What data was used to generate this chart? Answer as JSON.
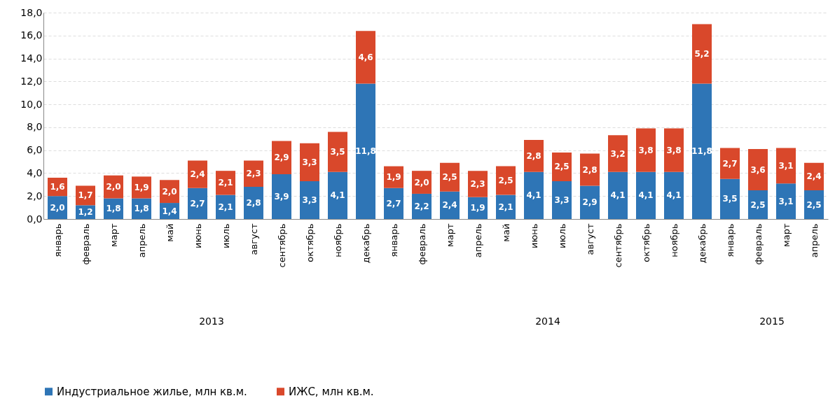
{
  "chart_data": {
    "type": "bar",
    "stacked": true,
    "categories": [
      "январь",
      "февраль",
      "март",
      "апрель",
      "май",
      "июнь",
      "июль",
      "август",
      "сентябрь",
      "октябрь",
      "ноябрь",
      "декабрь",
      "январь",
      "февраль",
      "март",
      "апрель",
      "май",
      "июнь",
      "июль",
      "август",
      "сентябрь",
      "октябрь",
      "ноябрь",
      "декабрь",
      "январь",
      "февраль",
      "март",
      "апрель"
    ],
    "series": [
      {
        "name": "Индустриальное жилье, млн кв.м.",
        "color": "#2e75b6",
        "values": [
          2.0,
          1.2,
          1.8,
          1.8,
          1.4,
          2.7,
          2.1,
          2.8,
          3.9,
          3.3,
          4.1,
          11.8,
          2.7,
          2.2,
          2.4,
          1.9,
          2.1,
          4.1,
          3.3,
          2.9,
          4.1,
          4.1,
          4.1,
          11.8,
          3.5,
          2.5,
          3.1,
          2.5
        ],
        "value_labels": [
          "2,0",
          "1,2",
          "1,8",
          "1,8",
          "1,4",
          "2,7",
          "2,1",
          "2,8",
          "3,9",
          "3,3",
          "4,1",
          "11,8",
          "2,7",
          "2,2",
          "2,4",
          "1,9",
          "2,1",
          "4,1",
          "3,3",
          "2,9",
          "4,1",
          "4,1",
          "4,1",
          "11,8",
          "3,5",
          "2,5",
          "3,1",
          "2,5"
        ]
      },
      {
        "name": "ИЖС, млн кв.м.",
        "color": "#d9482b",
        "values": [
          1.6,
          1.7,
          2.0,
          1.9,
          2.0,
          2.4,
          2.1,
          2.3,
          2.9,
          3.3,
          3.5,
          4.6,
          1.9,
          2.0,
          2.5,
          2.3,
          2.5,
          2.8,
          2.5,
          2.8,
          3.2,
          3.8,
          3.8,
          5.2,
          2.7,
          3.6,
          3.1,
          2.4
        ],
        "value_labels": [
          "1,6",
          "1,7",
          "2,0",
          "1,9",
          "2,0",
          "2,4",
          "2,1",
          "2,3",
          "2,9",
          "3,3",
          "3,5",
          "4,6",
          "1,9",
          "2,0",
          "2,5",
          "2,3",
          "2,5",
          "2,8",
          "2,5",
          "2,8",
          "3,2",
          "3,8",
          "3,8",
          "5,2",
          "2,7",
          "3,6",
          "3,1",
          "2,4"
        ]
      }
    ],
    "annotations": [
      "2013",
      "2014",
      "2015"
    ],
    "ylim": [
      0,
      18
    ],
    "yticks": [
      {
        "value": 0,
        "label": "0,0"
      },
      {
        "value": 2,
        "label": "2,0"
      },
      {
        "value": 4,
        "label": "4,0"
      },
      {
        "value": 6,
        "label": "6,0"
      },
      {
        "value": 8,
        "label": "8,0"
      },
      {
        "value": 10,
        "label": "10,0"
      },
      {
        "value": 12,
        "label": "12,0"
      },
      {
        "value": 14,
        "label": "14,0"
      },
      {
        "value": 16,
        "label": "16,0"
      },
      {
        "value": 18,
        "label": "18,0"
      }
    ],
    "grid": "y",
    "legend": "bottom"
  }
}
